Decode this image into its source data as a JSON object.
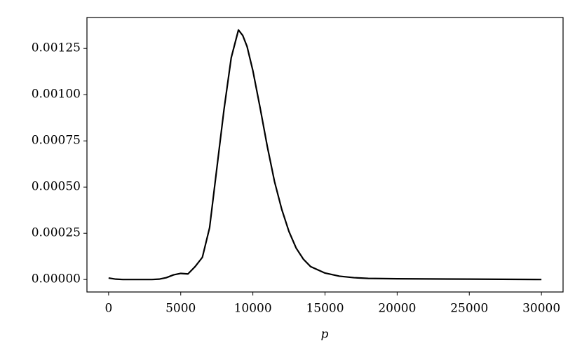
{
  "chart_data": {
    "type": "line",
    "x_label": "p",
    "x": [
      0,
      500,
      1000,
      2000,
      3000,
      3500,
      4000,
      4500,
      5000,
      5500,
      6000,
      6500,
      7000,
      7500,
      8000,
      8500,
      9000,
      9300,
      9600,
      10000,
      10500,
      11000,
      11500,
      12000,
      12500,
      13000,
      13500,
      14000,
      15000,
      16000,
      17000,
      18000,
      20000,
      25000,
      30000
    ],
    "series": [
      {
        "color": "#000000",
        "values": [
          8e-06,
          2e-06,
          0,
          0,
          0,
          2e-06,
          1e-05,
          2.5e-05,
          3.3e-05,
          3e-05,
          7e-05,
          0.00012,
          0.00028,
          0.0006,
          0.00092,
          0.0012,
          0.00135,
          0.00132,
          0.00126,
          0.00113,
          0.00093,
          0.00072,
          0.00053,
          0.00038,
          0.00026,
          0.00017,
          0.00011,
          7e-05,
          3.5e-05,
          1.8e-05,
          1e-05,
          6e-06,
          4e-06,
          2e-06,
          0
        ]
      }
    ],
    "xlim": [
      -1500,
      31500
    ],
    "ylim": [
      -6.75e-05,
      0.0014175
    ],
    "xticks": [
      0,
      5000,
      10000,
      15000,
      20000,
      25000,
      30000
    ],
    "yticks": [
      {
        "value": 0,
        "label": "0.00000"
      },
      {
        "value": 0.00025,
        "label": "0.00025"
      },
      {
        "value": 0.0005,
        "label": "0.00050"
      },
      {
        "value": 0.00075,
        "label": "0.00075"
      },
      {
        "value": 0.001,
        "label": "0.00100"
      },
      {
        "value": 0.00125,
        "label": "0.00125"
      }
    ],
    "grid": false
  }
}
